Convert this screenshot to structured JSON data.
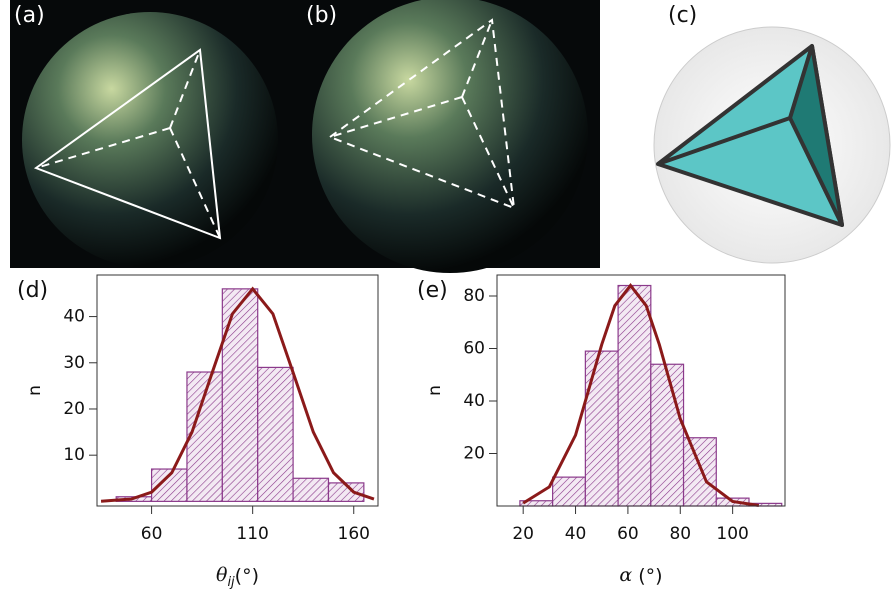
{
  "panels": [
    {
      "label": "(a)"
    },
    {
      "label": "(b)"
    },
    {
      "label": "(c)"
    }
  ],
  "chart_data": [
    {
      "type": "histogram",
      "panel_label": "(d)",
      "y_label": "n",
      "x_label": {
        "symbol": "θ",
        "subscript": "ij",
        "unit": "(°)"
      },
      "bins": [
        42.5,
        60,
        77.5,
        95,
        112.5,
        130,
        147.5,
        165
      ],
      "counts": [
        1,
        7,
        28,
        46,
        29,
        5,
        4
      ],
      "color": "#8b3a8b",
      "fit_curve": {
        "color": "#8b1a1a",
        "x": [
          35,
          50,
          60,
          70,
          80,
          90,
          100,
          110,
          120,
          130,
          140,
          150,
          160,
          170
        ],
        "values": [
          0.04,
          0.5,
          2.0,
          6.2,
          15,
          27.9,
          40.6,
          46,
          40.6,
          27.9,
          15,
          6.2,
          2.0,
          0.5
        ]
      },
      "xlim": [
        33,
        172
      ],
      "ylim": [
        -1,
        49
      ],
      "xticks": [
        60,
        110,
        160
      ],
      "yticks": [
        10,
        20,
        30,
        40
      ]
    },
    {
      "type": "histogram",
      "panel_label": "(e)",
      "y_label": "n",
      "x_label": {
        "symbol": "α",
        "subscript": "",
        "unit": " (°)"
      },
      "bins": [
        18.75,
        31.25,
        43.75,
        56.25,
        68.75,
        81.25,
        93.75,
        106.25,
        118.75
      ],
      "counts": [
        2,
        11,
        59,
        84,
        54,
        26,
        3,
        1
      ],
      "color": "#8b3a8b",
      "fit_curve": {
        "color": "#8b1a1a",
        "x": [
          20,
          30,
          40,
          50,
          55,
          61,
          67,
          72,
          80,
          90,
          100,
          110
        ],
        "values": [
          1.1,
          7.3,
          27.0,
          61.5,
          76.3,
          84,
          76.3,
          61.5,
          33.2,
          9.2,
          1.74,
          0.2
        ]
      },
      "xlim": [
        10,
        120
      ],
      "ylim": [
        0,
        88
      ],
      "xticks": [
        20,
        40,
        60,
        80,
        100
      ],
      "yticks": [
        20,
        40,
        60,
        80
      ]
    }
  ]
}
